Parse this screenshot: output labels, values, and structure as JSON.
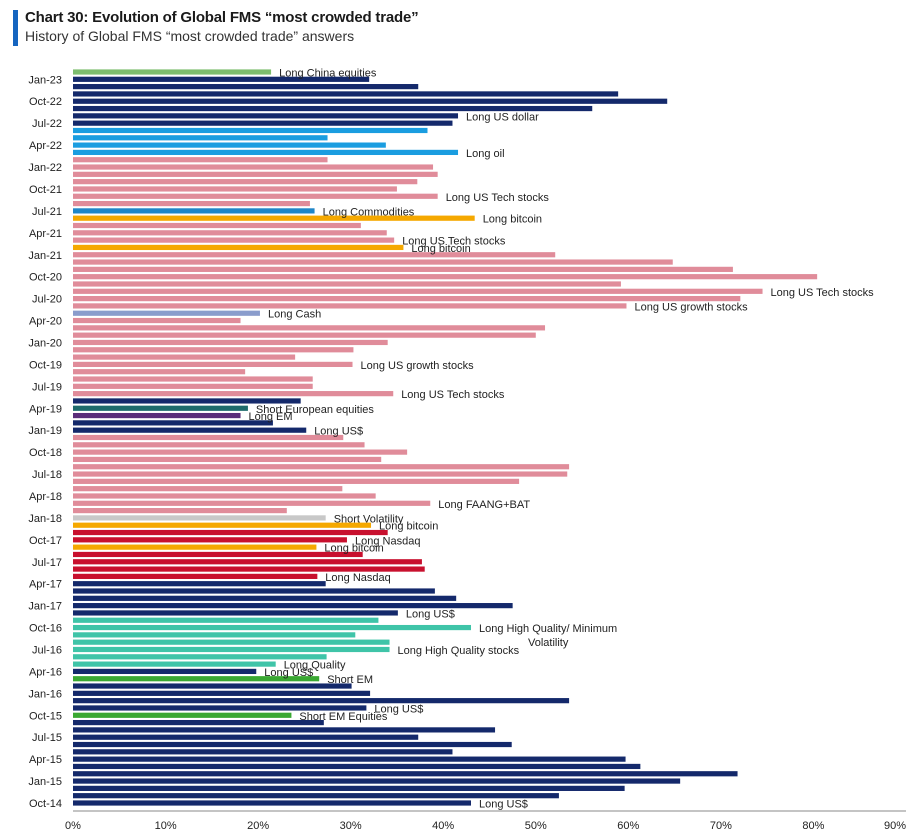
{
  "header": {
    "title": "Chart 30: Evolution of Global FMS “most crowded trade”",
    "subtitle": "History of Global FMS “most crowded trade” answers"
  },
  "colors": {
    "navy": "#14296b",
    "pink": "#e08c9a",
    "blue": "#1a9de0",
    "orange": "#f5a800",
    "green": "#7dbd6e",
    "teal": "#1e6b6b",
    "purple": "#5b2d7a",
    "crimson": "#c8102e",
    "turq": "#3fc4a8",
    "dgreen": "#3aa832",
    "grey": "#c8c8c8",
    "lilac": "#8a9ccc",
    "cblue": "#1f86c8"
  },
  "chart_data": {
    "type": "bar",
    "orientation": "horizontal",
    "x_unit": "percent",
    "xlim": [
      0,
      90
    ],
    "x_ticks": [
      "0%",
      "10%",
      "20%",
      "30%",
      "40%",
      "50%",
      "60%",
      "70%",
      "80%",
      "90%"
    ],
    "y_ticks": [
      "Jan-23",
      "Oct-22",
      "Jul-22",
      "Apr-22",
      "Jan-22",
      "Oct-21",
      "Jul-21",
      "Apr-21",
      "Jan-21",
      "Oct-20",
      "Jul-20",
      "Apr-20",
      "Jan-20",
      "Oct-19",
      "Jul-19",
      "Apr-19",
      "Jan-19",
      "Oct-18",
      "Jul-18",
      "Apr-18",
      "Jan-18",
      "Oct-17",
      "Jul-17",
      "Apr-17",
      "Jan-17",
      "Oct-16",
      "Jul-16",
      "Apr-16",
      "Jan-16",
      "Oct-15",
      "Jul-15",
      "Apr-15",
      "Jan-15",
      "Oct-14"
    ],
    "grid": false,
    "bars": [
      {
        "v": 21.4,
        "c": "green",
        "label": "Long China equities"
      },
      {
        "v": 32.0,
        "c": "navy"
      },
      {
        "v": 37.3,
        "c": "navy"
      },
      {
        "v": 58.9,
        "c": "navy"
      },
      {
        "v": 64.2,
        "c": "navy"
      },
      {
        "v": 56.1,
        "c": "navy"
      },
      {
        "v": 41.6,
        "c": "navy",
        "label": "Long US dollar"
      },
      {
        "v": 41.0,
        "c": "navy"
      },
      {
        "v": 38.3,
        "c": "blue"
      },
      {
        "v": 27.5,
        "c": "blue"
      },
      {
        "v": 33.8,
        "c": "blue"
      },
      {
        "v": 41.6,
        "c": "blue",
        "label": "Long oil"
      },
      {
        "v": 27.5,
        "c": "pink"
      },
      {
        "v": 38.9,
        "c": "pink"
      },
      {
        "v": 39.4,
        "c": "pink"
      },
      {
        "v": 37.2,
        "c": "pink"
      },
      {
        "v": 35.0,
        "c": "pink"
      },
      {
        "v": 39.4,
        "c": "pink",
        "label": "Long US Tech stocks"
      },
      {
        "v": 25.6,
        "c": "pink"
      },
      {
        "v": 26.1,
        "c": "cblue",
        "label": "Long Commodities"
      },
      {
        "v": 43.4,
        "c": "orange",
        "label": "Long bitcoin"
      },
      {
        "v": 31.1,
        "c": "pink"
      },
      {
        "v": 33.9,
        "c": "pink"
      },
      {
        "v": 34.7,
        "c": "pink",
        "label": "Long US Tech stocks"
      },
      {
        "v": 35.7,
        "c": "orange",
        "label": "Long bitcoin"
      },
      {
        "v": 52.1,
        "c": "pink"
      },
      {
        "v": 64.8,
        "c": "pink"
      },
      {
        "v": 71.3,
        "c": "pink"
      },
      {
        "v": 80.4,
        "c": "pink"
      },
      {
        "v": 59.2,
        "c": "pink"
      },
      {
        "v": 74.5,
        "c": "pink",
        "label": "Long US Tech stocks"
      },
      {
        "v": 72.1,
        "c": "pink"
      },
      {
        "v": 59.8,
        "c": "pink",
        "label": "Long US growth stocks"
      },
      {
        "v": 20.2,
        "c": "lilac",
        "label": "Long Cash"
      },
      {
        "v": 18.1,
        "c": "pink"
      },
      {
        "v": 51.0,
        "c": "pink"
      },
      {
        "v": 50.0,
        "c": "pink"
      },
      {
        "v": 34.0,
        "c": "pink"
      },
      {
        "v": 30.3,
        "c": "pink"
      },
      {
        "v": 24.0,
        "c": "pink"
      },
      {
        "v": 30.2,
        "c": "pink",
        "label": "Long US growth stocks"
      },
      {
        "v": 18.6,
        "c": "pink"
      },
      {
        "v": 25.9,
        "c": "pink"
      },
      {
        "v": 25.9,
        "c": "pink"
      },
      {
        "v": 34.6,
        "c": "pink",
        "label": "Long US Tech stocks"
      },
      {
        "v": 24.6,
        "c": "navy"
      },
      {
        "v": 18.9,
        "c": "teal",
        "label": "Short European equities"
      },
      {
        "v": 18.1,
        "c": "purple",
        "label": "Long EM"
      },
      {
        "v": 21.6,
        "c": "navy"
      },
      {
        "v": 25.2,
        "c": "navy",
        "label": "Long US$"
      },
      {
        "v": 29.2,
        "c": "pink"
      },
      {
        "v": 31.5,
        "c": "pink"
      },
      {
        "v": 36.1,
        "c": "pink"
      },
      {
        "v": 33.3,
        "c": "pink"
      },
      {
        "v": 53.6,
        "c": "pink"
      },
      {
        "v": 53.4,
        "c": "pink"
      },
      {
        "v": 48.2,
        "c": "pink"
      },
      {
        "v": 29.1,
        "c": "pink"
      },
      {
        "v": 32.7,
        "c": "pink"
      },
      {
        "v": 38.6,
        "c": "pink",
        "label": "Long FAANG+BAT"
      },
      {
        "v": 23.1,
        "c": "pink"
      },
      {
        "v": 27.3,
        "c": "grey",
        "label": "Short Volatility"
      },
      {
        "v": 32.2,
        "c": "orange",
        "label": "Long bitcoin"
      },
      {
        "v": 34.0,
        "c": "crimson"
      },
      {
        "v": 29.6,
        "c": "crimson",
        "label": "Long Nasdaq"
      },
      {
        "v": 26.3,
        "c": "orange",
        "label": "Long bitcoin"
      },
      {
        "v": 31.3,
        "c": "crimson"
      },
      {
        "v": 37.7,
        "c": "crimson"
      },
      {
        "v": 38.0,
        "c": "crimson"
      },
      {
        "v": 26.4,
        "c": "crimson",
        "label": "Long Nasdaq"
      },
      {
        "v": 27.3,
        "c": "navy"
      },
      {
        "v": 39.1,
        "c": "navy"
      },
      {
        "v": 41.4,
        "c": "navy"
      },
      {
        "v": 47.5,
        "c": "navy"
      },
      {
        "v": 35.1,
        "c": "navy",
        "label": "Long US$"
      },
      {
        "v": 33.0,
        "c": "turq"
      },
      {
        "v": 43.0,
        "c": "turq",
        "label": "Long High Quality/ Minimum Volatility"
      },
      {
        "v": 30.5,
        "c": "turq"
      },
      {
        "v": 34.2,
        "c": "turq"
      },
      {
        "v": 34.2,
        "c": "turq",
        "label": "Long High Quality stocks"
      },
      {
        "v": 27.4,
        "c": "turq"
      },
      {
        "v": 21.9,
        "c": "turq",
        "label": "Long Quality"
      },
      {
        "v": 19.8,
        "c": "navy",
        "label": "Long US$"
      },
      {
        "v": 26.6,
        "c": "dgreen",
        "label": "Short EM"
      },
      {
        "v": 30.1,
        "c": "navy"
      },
      {
        "v": 32.1,
        "c": "navy"
      },
      {
        "v": 53.6,
        "c": "navy"
      },
      {
        "v": 31.7,
        "c": "navy",
        "label": "Long US$"
      },
      {
        "v": 23.6,
        "c": "dgreen",
        "label": "Short EM Equities"
      },
      {
        "v": 27.1,
        "c": "navy"
      },
      {
        "v": 45.6,
        "c": "navy"
      },
      {
        "v": 37.3,
        "c": "navy"
      },
      {
        "v": 47.4,
        "c": "navy"
      },
      {
        "v": 41.0,
        "c": "navy"
      },
      {
        "v": 59.7,
        "c": "navy"
      },
      {
        "v": 61.3,
        "c": "navy"
      },
      {
        "v": 71.8,
        "c": "navy"
      },
      {
        "v": 65.6,
        "c": "navy"
      },
      {
        "v": 59.6,
        "c": "navy"
      },
      {
        "v": 52.5,
        "c": "navy"
      },
      {
        "v": 43.0,
        "c": "navy",
        "label": "Long US$"
      }
    ]
  }
}
